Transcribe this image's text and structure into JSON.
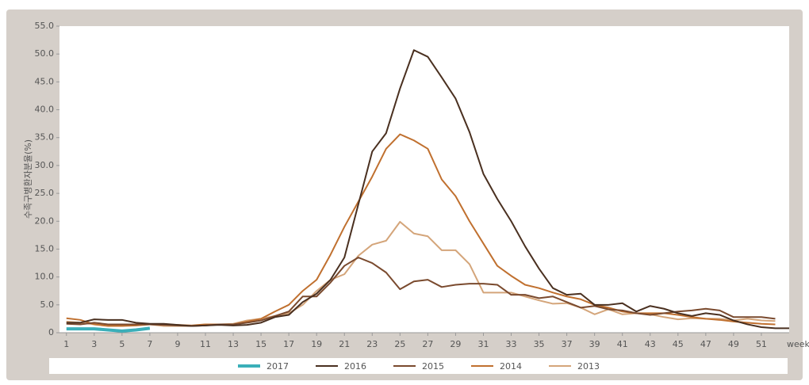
{
  "chart_data": {
    "type": "line",
    "y_label": "수족구병환자분율(%)",
    "x_label": "week",
    "x": [
      1,
      2,
      3,
      4,
      5,
      6,
      7,
      8,
      9,
      10,
      11,
      12,
      13,
      14,
      15,
      16,
      17,
      18,
      19,
      20,
      21,
      22,
      23,
      24,
      25,
      26,
      27,
      28,
      29,
      30,
      31,
      32,
      33,
      34,
      35,
      36,
      37,
      38,
      39,
      40,
      41,
      42,
      43,
      44,
      45,
      46,
      47,
      48,
      49,
      50,
      51,
      52,
      53
    ],
    "xlim": [
      0.5,
      53
    ],
    "xticks": [
      1,
      3,
      5,
      7,
      9,
      11,
      13,
      15,
      17,
      19,
      21,
      23,
      25,
      27,
      29,
      31,
      33,
      35,
      37,
      39,
      41,
      43,
      45,
      47,
      49,
      51
    ],
    "ylim": [
      0,
      55
    ],
    "yticks": [
      0,
      {
        "value": 5,
        "label": "5.0"
      },
      {
        "value": 10,
        "label": "10.0"
      },
      {
        "value": 15,
        "label": "15.0"
      },
      {
        "value": 20,
        "label": "20.0"
      },
      {
        "value": 25,
        "label": "25.0"
      },
      {
        "value": 30,
        "label": "30.0"
      },
      {
        "value": 35,
        "label": "35.0"
      },
      {
        "value": 40,
        "label": "40.0"
      },
      {
        "value": 45,
        "label": "45.0"
      },
      {
        "value": 50,
        "label": "50.0"
      },
      {
        "value": 55,
        "label": "55.0"
      }
    ],
    "series": [
      {
        "name": "2017",
        "color": "#3aafb9",
        "values": [
          0.7,
          0.7,
          0.7,
          0.5,
          0.3,
          0.5,
          0.8,
          null,
          null,
          null,
          null,
          null,
          null,
          null,
          null,
          null,
          null,
          null,
          null,
          null,
          null,
          null,
          null,
          null,
          null,
          null,
          null,
          null,
          null,
          null,
          null,
          null,
          null,
          null,
          null,
          null,
          null,
          null,
          null,
          null,
          null,
          null,
          null,
          null,
          null,
          null,
          null,
          null,
          null,
          null,
          null,
          null,
          null
        ]
      },
      {
        "name": "2016",
        "color": "#4a3020",
        "values": [
          1.8,
          1.8,
          2.4,
          2.3,
          2.3,
          1.8,
          1.6,
          1.6,
          1.4,
          1.2,
          1.3,
          1.4,
          1.3,
          1.4,
          1.8,
          2.8,
          3.2,
          5.5,
          7.0,
          9.5,
          13.5,
          23,
          32.5,
          35.8,
          43.8,
          50.7,
          49.5,
          45.8,
          42,
          36,
          28.5,
          24,
          20,
          15.5,
          11.5,
          8,
          6.8,
          7,
          5,
          5,
          5.3,
          3.8,
          4.8,
          4.3,
          3.5,
          3,
          3.5,
          3.2,
          2.2,
          1.5,
          1,
          0.8,
          0.8
        ]
      },
      {
        "name": "2015",
        "color": "#7a4a2e",
        "values": [
          1.6,
          1.5,
          1.8,
          1.5,
          1.5,
          1.5,
          1.5,
          1.4,
          1.3,
          1.2,
          1.3,
          1.5,
          1.5,
          1.8,
          2.2,
          3,
          3.8,
          6.5,
          6.5,
          9,
          12,
          13.5,
          12.5,
          10.8,
          7.8,
          9.2,
          9.5,
          8.2,
          8.6,
          8.8,
          8.8,
          8.6,
          6.8,
          6.8,
          6.2,
          6.5,
          5.5,
          4.5,
          4.8,
          4.2,
          4,
          3.5,
          3.2,
          3.5,
          3.8,
          4,
          4.3,
          4,
          2.8,
          2.8,
          2.8,
          2.5,
          null
        ]
      },
      {
        "name": "2014",
        "color": "#c0702f",
        "values": [
          2.6,
          2.3,
          1.5,
          1.2,
          1.2,
          1.3,
          1.5,
          1.5,
          1.4,
          1.3,
          1.5,
          1.5,
          1.5,
          2,
          2.5,
          3.8,
          5,
          7.5,
          9.5,
          14,
          19,
          23.5,
          28,
          33,
          35.6,
          34.5,
          33,
          27.5,
          24.5,
          20,
          16,
          12,
          10.2,
          8.6,
          8,
          7.2,
          6.5,
          6,
          5,
          4.5,
          3.8,
          3.5,
          3.5,
          3.5,
          3.2,
          2.8,
          2.5,
          2.3,
          2,
          1.8,
          1.6,
          1.5,
          null
        ]
      },
      {
        "name": "2013",
        "color": "#d4a57a",
        "values": [
          2,
          1.8,
          1.5,
          1.3,
          1.3,
          1.5,
          1.5,
          1.2,
          1.2,
          1.2,
          1.5,
          1.5,
          1.6,
          2.2,
          2.5,
          3,
          3.5,
          5,
          7.5,
          9.5,
          10.5,
          13.8,
          15.8,
          16.5,
          19.9,
          17.8,
          17.3,
          14.8,
          14.8,
          12.3,
          7.2,
          7.2,
          7.2,
          6.5,
          5.8,
          5.2,
          5.3,
          4.5,
          3.3,
          4.2,
          3.3,
          3.5,
          3.3,
          2.8,
          2.4,
          2.6,
          2.5,
          2.5,
          2.2,
          2.5,
          2.2,
          2.1,
          null
        ]
      }
    ]
  }
}
